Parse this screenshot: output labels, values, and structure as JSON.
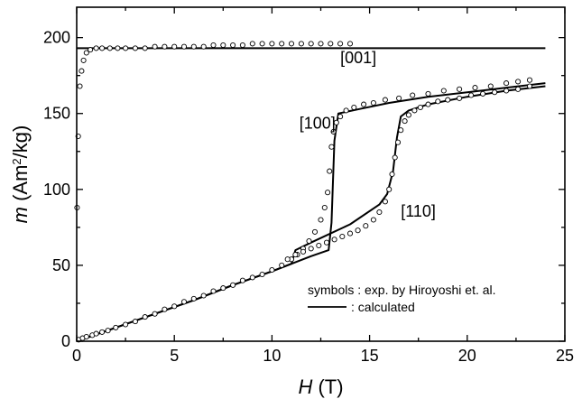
{
  "chart_data": {
    "type": "scatter",
    "xlabel_italic": "H",
    "xlabel_unit": "(T)",
    "ylabel_italic": "m",
    "ylabel_unit_pre": "(Am",
    "ylabel_unit_sup": "2",
    "ylabel_unit_post": "/kg)",
    "xlim": [
      0,
      25
    ],
    "ylim": [
      0,
      220
    ],
    "x_ticks": [
      0,
      5,
      10,
      15,
      20,
      25
    ],
    "x_tick_labels": [
      "0",
      "5",
      "10",
      "15",
      "20",
      "25"
    ],
    "y_ticks": [
      0,
      50,
      100,
      150,
      200
    ],
    "y_tick_labels": [
      "0",
      "50",
      "100",
      "150",
      "200"
    ],
    "grid": false,
    "legend": {
      "placement": "lower-right",
      "symbols_label": "symbols : exp. by Hiroyoshi et. al.",
      "line_label": ": calculated"
    },
    "series_labels": [
      {
        "text": "[001]",
        "x": 13.5,
        "y": 183
      },
      {
        "text": "[100]",
        "x": 11.4,
        "y": 140
      },
      {
        "text": "[110]",
        "x": 16.6,
        "y": 82
      }
    ],
    "series": [
      {
        "marker": "line",
        "label": "[001]",
        "x": [
          0,
          24
        ],
        "y": [
          193,
          193
        ]
      },
      {
        "marker": "line",
        "label": "[100]",
        "x": [
          0,
          2,
          4,
          6,
          8,
          10,
          12,
          12.9,
          13.05,
          13.2,
          13.4,
          14.5,
          16,
          18,
          20,
          22,
          24
        ],
        "y": [
          0,
          9,
          18,
          27,
          37,
          46,
          56,
          60,
          78,
          132,
          150,
          153,
          157,
          161,
          164,
          167,
          170
        ]
      },
      {
        "marker": "line",
        "label": "[110]",
        "x": [
          0,
          2,
          4,
          6,
          8,
          10,
          11,
          11.2,
          12,
          14,
          15.5,
          15.9,
          16.2,
          16.4,
          16.6,
          17,
          18,
          20,
          22,
          24
        ],
        "y": [
          0,
          9,
          18,
          27,
          37,
          46,
          51,
          60,
          65,
          77,
          90,
          97,
          112,
          134,
          148,
          152,
          156,
          161,
          165,
          168
        ]
      },
      {
        "marker": "circle",
        "label": "exp [001]",
        "x": [
          0.02,
          0.08,
          0.16,
          0.25,
          0.35,
          0.5,
          0.7,
          1.0,
          1.3,
          1.7,
          2.1,
          2.5,
          3.0,
          3.5,
          4.0,
          4.5,
          5.0,
          5.5,
          6.0,
          6.5,
          7.0,
          7.5,
          8.0,
          8.5,
          9.0,
          9.5,
          10.0,
          10.5,
          11.0,
          11.5,
          12.0,
          12.5,
          13.0,
          13.5,
          14.0
        ],
        "y": [
          88,
          135,
          168,
          178,
          185,
          190,
          192,
          193,
          193,
          193,
          193,
          193,
          193,
          193,
          194,
          194,
          194,
          194,
          194,
          194,
          195,
          195,
          195,
          195,
          196,
          196,
          196,
          196,
          196,
          196,
          196,
          196,
          196,
          196,
          196
        ]
      },
      {
        "marker": "circle",
        "label": "exp [100]",
        "x": [
          0.1,
          0.3,
          0.5,
          0.8,
          1.0,
          1.3,
          1.6,
          2.0,
          2.5,
          3.0,
          3.5,
          4.0,
          4.5,
          5.0,
          5.5,
          6.0,
          6.5,
          7.0,
          7.5,
          8.0,
          8.5,
          9.0,
          9.5,
          10.0,
          10.5,
          11.0,
          11.3,
          11.6,
          11.9,
          12.2,
          12.5,
          12.7,
          12.85,
          12.95,
          13.05,
          13.15,
          13.3,
          13.5,
          13.8,
          14.2,
          14.7,
          15.2,
          15.8,
          16.5,
          17.2,
          18.0,
          18.8,
          19.6,
          20.4,
          21.2,
          22.0,
          22.6,
          23.2
        ],
        "y": [
          1,
          2,
          3,
          4,
          5,
          6,
          7,
          9,
          11,
          13,
          16,
          18,
          21,
          23,
          26,
          28,
          30,
          33,
          35,
          37,
          40,
          42,
          44,
          47,
          50,
          54,
          57,
          61,
          66,
          72,
          80,
          88,
          98,
          112,
          128,
          138,
          144,
          148,
          152,
          154,
          156,
          157,
          159,
          160,
          162,
          163,
          165,
          166,
          167,
          168,
          170,
          171,
          172
        ]
      },
      {
        "marker": "circle",
        "label": "exp [110]",
        "x": [
          10.8,
          11.2,
          11.6,
          12.0,
          12.4,
          12.8,
          13.2,
          13.6,
          14.0,
          14.4,
          14.8,
          15.2,
          15.5,
          15.8,
          16.0,
          16.15,
          16.3,
          16.45,
          16.6,
          16.8,
          17.0,
          17.3,
          17.6,
          18.0,
          18.5,
          19.0,
          19.6,
          20.2,
          20.8,
          21.4,
          22.0,
          22.6,
          23.2
        ],
        "y": [
          54,
          57,
          59,
          61,
          63,
          65,
          67,
          69,
          71,
          73,
          76,
          80,
          85,
          92,
          100,
          110,
          121,
          131,
          139,
          145,
          149,
          152,
          154,
          156,
          158,
          159,
          160,
          162,
          163,
          164,
          165,
          166,
          168
        ]
      }
    ]
  }
}
